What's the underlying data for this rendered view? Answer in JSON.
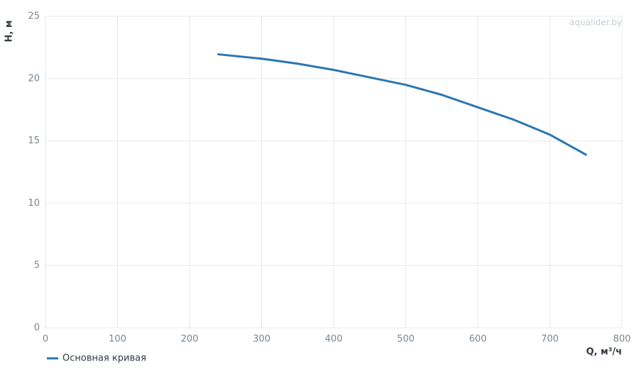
{
  "chart_data": {
    "type": "line",
    "watermark": "aqualider.by",
    "x_label": "Q, м³/ч",
    "y_label": "H, м",
    "x": [
      240,
      300,
      350,
      400,
      450,
      500,
      550,
      600,
      650,
      700,
      750
    ],
    "series": [
      {
        "name": "Основная кривая",
        "color": "#2a77b1",
        "values": [
          21.95,
          21.6,
          21.2,
          20.7,
          20.1,
          19.5,
          18.7,
          17.7,
          16.7,
          15.5,
          13.9
        ]
      }
    ],
    "xlim": [
      0,
      800
    ],
    "xticks": [
      0,
      100,
      200,
      300,
      400,
      500,
      600,
      700,
      800
    ],
    "ylim": [
      0,
      25
    ],
    "yticks": [
      0,
      5,
      10,
      15,
      20,
      25
    ],
    "grid": true,
    "legend": "bottom-left"
  }
}
